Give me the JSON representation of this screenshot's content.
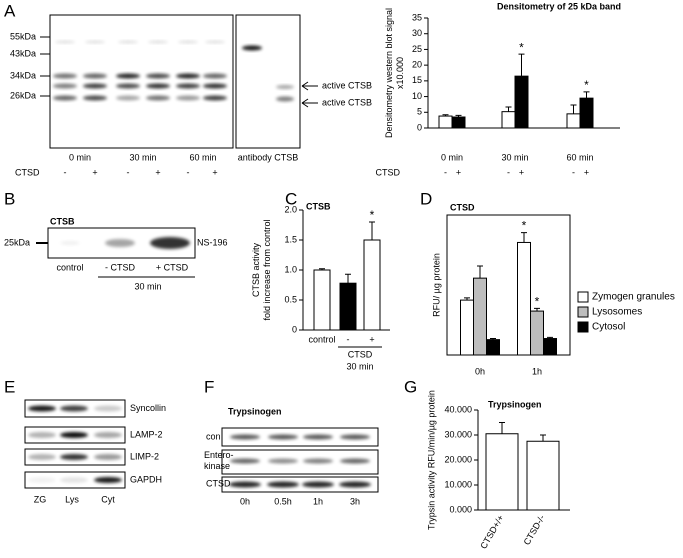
{
  "panel_labels": [
    "A",
    "B",
    "C",
    "D",
    "E",
    "F",
    "G"
  ],
  "blot_a": {
    "mw_markers": [
      "55kDa",
      "43kDa",
      "34kDa",
      "26kDa"
    ],
    "annotations": [
      "active CTSB",
      "active CTSB"
    ],
    "times": [
      "0 min",
      "30 min",
      "60 min"
    ],
    "treatment": "CTSD",
    "signs": [
      "-",
      "+",
      "-",
      "+",
      "-",
      "+"
    ],
    "extra_lane": "antibody CTSB"
  },
  "blot_b": {
    "title": "CTSB",
    "mw_marker": "25kDa",
    "probe": "NS-196",
    "lanes": [
      "control",
      "- CTSD",
      "+ CTSD"
    ],
    "time": "30 min"
  },
  "blot_e": {
    "rows": [
      "Syncollin",
      "LAMP-2",
      "LIMP-2",
      "GAPDH"
    ],
    "lanes": [
      "ZG",
      "Lys",
      "Cyt"
    ]
  },
  "blot_f": {
    "title": "Trypsinogen",
    "rows": [
      "con",
      "Entero-\nkinase",
      "CTSD"
    ],
    "lanes": [
      "0h",
      "0.5h",
      "1h",
      "3h"
    ]
  },
  "chart_data": [
    {
      "type": "bar",
      "title": "Densitometry of 25 kDa band",
      "y_label": "Densitometry western blot signal x10.000",
      "categories": [
        "0 min",
        "30 min",
        "60 min"
      ],
      "x_label": "CTSD",
      "series": [
        {
          "name": "-",
          "color": "#ffffff",
          "values": [
            3.8,
            5.2,
            4.5
          ],
          "errors": [
            0.4,
            1.5,
            2.8
          ],
          "significant": [
            false,
            false,
            false
          ]
        },
        {
          "name": "+",
          "color": "#000000",
          "values": [
            3.5,
            16.5,
            9.5
          ],
          "errors": [
            0.5,
            7,
            2
          ],
          "significant": [
            false,
            true,
            true
          ]
        }
      ],
      "significance_label": "*",
      "ylim": [
        0,
        35
      ],
      "yticks": [
        0,
        5,
        10,
        15,
        20,
        25,
        30,
        35
      ]
    },
    {
      "type": "bar",
      "title": "CTSB",
      "y_label": "CTSB activity\nfold increase from control",
      "categories": [
        "control",
        "-",
        "+"
      ],
      "group_label": "CTSD",
      "group_sublabel": "30 min",
      "series": [
        {
          "colors": [
            "#ffffff",
            "#000000",
            "#ffffff"
          ],
          "values": [
            1.0,
            0.78,
            1.5
          ],
          "errors": [
            0.02,
            0.15,
            0.3
          ],
          "significant": [
            false,
            false,
            true
          ]
        }
      ],
      "significance_label": "*",
      "ylim": [
        0,
        2
      ],
      "yticks": [
        0,
        0.5,
        {
          "value": 1,
          "label": "1.0"
        },
        1.5,
        {
          "value": 2,
          "label": "2.0"
        }
      ]
    },
    {
      "type": "bar",
      "title": "CTSD",
      "y_label": "RFU/ µg protein",
      "categories": [
        "0h",
        "1h"
      ],
      "frame": true,
      "legend": "right",
      "series": [
        {
          "name": "Zymogen granules",
          "color": "#ffffff",
          "values": [
            100,
            205
          ],
          "errors": [
            4,
            18
          ],
          "significant": [
            false,
            true
          ]
        },
        {
          "name": "Lysosomes",
          "color": "#bdbdbd",
          "values": [
            140,
            80
          ],
          "errors": [
            22,
            5
          ],
          "significant": [
            false,
            true
          ]
        },
        {
          "name": "Cytosol",
          "color": "#000000",
          "values": [
            28,
            30
          ],
          "errors": [
            2,
            2
          ],
          "significant": [
            false,
            false
          ]
        }
      ],
      "significance_label": "*",
      "ylim": [
        0,
        255
      ]
    },
    {
      "type": "bar",
      "title": "Trypsinogen",
      "y_label": "Trypsin activity RFU/min/µg protein",
      "categories": [
        "CTSD+/+",
        "CTSD-/-"
      ],
      "series": [
        {
          "color": "#ffffff",
          "values": [
            30500,
            27500
          ],
          "errors": [
            4500,
            2500
          ],
          "significant": [
            false,
            false
          ]
        }
      ],
      "ylim": [
        0,
        40000
      ],
      "yticks": [
        {
          "value": 0,
          "label": "0.000"
        },
        {
          "value": 10000,
          "label": "10.000"
        },
        {
          "value": 20000,
          "label": "20.000"
        },
        {
          "value": 30000,
          "label": "30.000"
        },
        {
          "value": 40000,
          "label": "40.000"
        }
      ]
    }
  ]
}
